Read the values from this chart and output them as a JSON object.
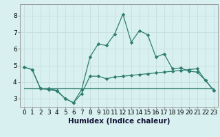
{
  "xlabel": "Humidex (Indice chaleur)",
  "xlim": [
    -0.5,
    23.5
  ],
  "ylim": [
    2.5,
    8.7
  ],
  "yticks": [
    3,
    4,
    5,
    6,
    7,
    8
  ],
  "xticks": [
    0,
    1,
    2,
    3,
    4,
    5,
    6,
    7,
    8,
    9,
    10,
    11,
    12,
    13,
    14,
    15,
    16,
    17,
    18,
    19,
    20,
    21,
    22,
    23
  ],
  "line_upper_x": [
    0,
    1,
    2,
    3,
    4,
    5,
    6,
    7,
    8,
    9,
    10,
    11,
    12,
    13,
    14,
    15,
    16,
    17,
    18,
    19,
    20,
    21,
    22,
    23
  ],
  "line_upper_y": [
    4.9,
    4.75,
    3.6,
    3.6,
    3.5,
    3.0,
    2.75,
    3.55,
    5.5,
    6.3,
    6.2,
    6.9,
    8.1,
    6.4,
    7.1,
    6.85,
    5.5,
    5.7,
    4.8,
    4.85,
    4.65,
    4.6,
    4.1,
    3.5
  ],
  "line_lower_x": [
    0,
    1,
    2,
    3,
    4,
    5,
    6,
    7,
    8,
    9,
    10,
    11,
    12,
    13,
    14,
    15,
    16,
    17,
    18,
    19,
    20,
    21,
    22,
    23
  ],
  "line_lower_y": [
    4.9,
    4.75,
    3.6,
    3.55,
    3.45,
    3.0,
    2.75,
    3.3,
    4.35,
    4.35,
    4.2,
    4.3,
    4.35,
    4.4,
    4.45,
    4.5,
    4.55,
    4.6,
    4.65,
    4.7,
    4.75,
    4.8,
    4.1,
    3.5
  ],
  "line_trend_x": [
    0,
    23
  ],
  "line_trend_y": [
    3.6,
    3.6
  ],
  "line_color": "#2e7d6e",
  "bg_color": "#d8f0f0",
  "grid_color": "#c8e0e0",
  "tick_label_fontsize": 6.5,
  "xlabel_fontsize": 7.5
}
